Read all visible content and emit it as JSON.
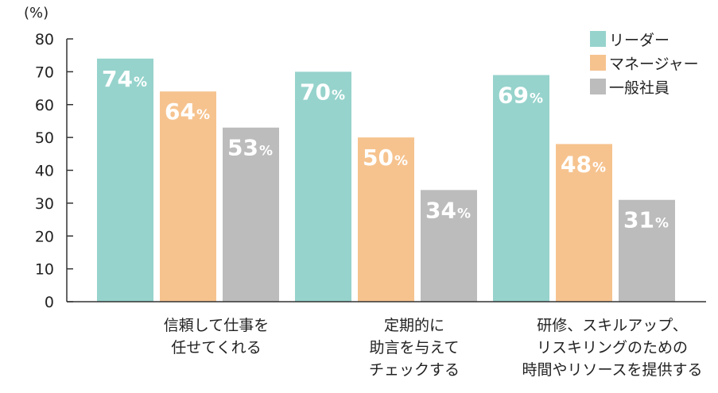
{
  "chart_data": {
    "type": "bar",
    "y_unit_label": "(%)",
    "ylim": [
      0,
      80
    ],
    "yticks": [
      0,
      10,
      20,
      30,
      40,
      50,
      60,
      70,
      80
    ],
    "grid": false,
    "legend_position": "top-right",
    "categories": [
      [
        "信頼して仕事を",
        "任せてくれる"
      ],
      [
        "定期的に",
        "助言を与えて",
        "チェックする"
      ],
      [
        "研修、スキルアップ、",
        "リスキリングのための",
        "時間やリソースを提供する"
      ]
    ],
    "series": [
      {
        "name": "リーダー",
        "color": "#96d3cc",
        "values": [
          74,
          70,
          69
        ]
      },
      {
        "name": "マネージャー",
        "color": "#f6c38f",
        "values": [
          64,
          50,
          48
        ]
      },
      {
        "name": "一般社員",
        "color": "#bcbcbc",
        "values": [
          53,
          34,
          31
        ]
      }
    ],
    "data_label_suffix": "%"
  }
}
